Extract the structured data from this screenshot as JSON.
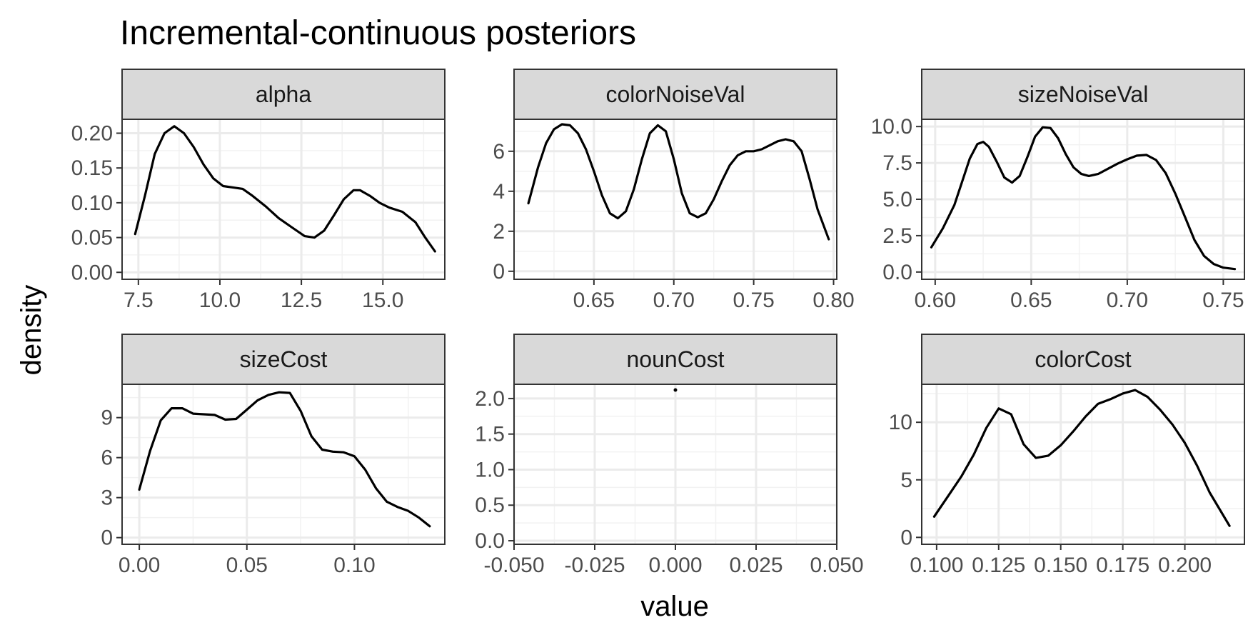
{
  "chart_data": {
    "type": "area",
    "title": "Incremental-continuous posteriors",
    "xlabel": "value",
    "ylabel": "density",
    "grid": true,
    "facets": [
      {
        "name": "alpha",
        "xlim": [
          7.0,
          16.9
        ],
        "ylim": [
          -0.01,
          0.22
        ],
        "xticks": [
          7.5,
          10.0,
          12.5,
          15.0
        ],
        "xtick_labels": [
          "7.5",
          "10.0",
          "12.5",
          "15.0"
        ],
        "yticks": [
          0.0,
          0.05,
          0.1,
          0.15,
          0.2
        ],
        "ytick_labels": [
          "0.00",
          "0.05",
          "0.10",
          "0.15",
          "0.20"
        ],
        "x": [
          7.4,
          7.7,
          8.0,
          8.3,
          8.6,
          8.9,
          9.2,
          9.5,
          9.8,
          10.1,
          10.4,
          10.7,
          11.0,
          11.4,
          11.8,
          12.2,
          12.6,
          12.9,
          13.2,
          13.5,
          13.8,
          14.1,
          14.3,
          14.6,
          14.9,
          15.2,
          15.6,
          16.0,
          16.3,
          16.6
        ],
        "y": [
          0.055,
          0.11,
          0.17,
          0.2,
          0.21,
          0.2,
          0.18,
          0.155,
          0.135,
          0.124,
          0.122,
          0.12,
          0.11,
          0.095,
          0.078,
          0.065,
          0.052,
          0.05,
          0.06,
          0.082,
          0.105,
          0.118,
          0.118,
          0.11,
          0.1,
          0.093,
          0.087,
          0.072,
          0.05,
          0.03
        ]
      },
      {
        "name": "colorNoiseVal",
        "xlim": [
          0.6,
          0.802
        ],
        "ylim": [
          -0.4,
          7.6
        ],
        "xticks": [
          0.65,
          0.7,
          0.75,
          0.8
        ],
        "xtick_labels": [
          "0.65",
          "0.70",
          "0.75",
          "0.80"
        ],
        "yticks": [
          0,
          2,
          4,
          6
        ],
        "ytick_labels": [
          "0",
          "2",
          "4",
          "6"
        ],
        "x": [
          0.609,
          0.615,
          0.62,
          0.625,
          0.63,
          0.635,
          0.64,
          0.645,
          0.65,
          0.655,
          0.66,
          0.665,
          0.67,
          0.675,
          0.68,
          0.685,
          0.69,
          0.695,
          0.7,
          0.705,
          0.71,
          0.715,
          0.72,
          0.725,
          0.73,
          0.735,
          0.74,
          0.745,
          0.75,
          0.755,
          0.76,
          0.765,
          0.77,
          0.775,
          0.78,
          0.785,
          0.79,
          0.797
        ],
        "y": [
          3.4,
          5.2,
          6.4,
          7.1,
          7.35,
          7.3,
          6.9,
          6.1,
          5.0,
          3.8,
          2.9,
          2.65,
          3.0,
          4.1,
          5.6,
          6.9,
          7.3,
          7.0,
          5.6,
          3.9,
          2.9,
          2.7,
          2.9,
          3.6,
          4.5,
          5.3,
          5.8,
          6.0,
          6.0,
          6.1,
          6.3,
          6.5,
          6.6,
          6.5,
          6.0,
          4.6,
          3.1,
          1.6
        ]
      },
      {
        "name": "sizeNoiseVal",
        "xlim": [
          0.593,
          0.761
        ],
        "ylim": [
          -0.5,
          10.5
        ],
        "xticks": [
          0.6,
          0.65,
          0.7,
          0.75
        ],
        "xtick_labels": [
          "0.60",
          "0.65",
          "0.70",
          "0.75"
        ],
        "yticks": [
          0,
          2.5,
          5,
          7.5,
          10
        ],
        "ytick_labels": [
          "0.0",
          "2.5",
          "5.0",
          "7.5",
          "10.0"
        ],
        "x": [
          0.598,
          0.604,
          0.61,
          0.614,
          0.618,
          0.622,
          0.625,
          0.628,
          0.632,
          0.636,
          0.64,
          0.644,
          0.648,
          0.652,
          0.656,
          0.66,
          0.664,
          0.668,
          0.672,
          0.676,
          0.68,
          0.685,
          0.69,
          0.695,
          0.7,
          0.705,
          0.71,
          0.715,
          0.72,
          0.725,
          0.73,
          0.735,
          0.74,
          0.745,
          0.75,
          0.756
        ],
        "y": [
          1.7,
          3.0,
          4.6,
          6.2,
          7.8,
          8.8,
          8.95,
          8.6,
          7.6,
          6.5,
          6.15,
          6.6,
          7.9,
          9.3,
          9.95,
          9.9,
          9.2,
          8.1,
          7.2,
          6.75,
          6.6,
          6.75,
          7.1,
          7.45,
          7.75,
          8.0,
          8.05,
          7.7,
          6.8,
          5.4,
          3.8,
          2.2,
          1.1,
          0.55,
          0.3,
          0.2
        ]
      },
      {
        "name": "sizeCost",
        "xlim": [
          -0.008,
          0.142
        ],
        "ylim": [
          -0.5,
          11.5
        ],
        "xticks": [
          0.0,
          0.05,
          0.1
        ],
        "xtick_labels": [
          "0.00",
          "0.05",
          "0.10"
        ],
        "yticks": [
          0,
          3,
          6,
          9
        ],
        "ytick_labels": [
          "0",
          "3",
          "6",
          "9"
        ],
        "x": [
          0.0,
          0.005,
          0.01,
          0.015,
          0.02,
          0.025,
          0.03,
          0.035,
          0.04,
          0.045,
          0.05,
          0.055,
          0.06,
          0.065,
          0.07,
          0.075,
          0.08,
          0.085,
          0.09,
          0.095,
          0.1,
          0.105,
          0.11,
          0.115,
          0.12,
          0.125,
          0.13,
          0.135
        ],
        "y": [
          3.6,
          6.5,
          8.8,
          9.7,
          9.7,
          9.3,
          9.25,
          9.2,
          8.85,
          8.9,
          9.6,
          10.3,
          10.7,
          10.9,
          10.85,
          9.5,
          7.6,
          6.6,
          6.45,
          6.4,
          6.1,
          5.1,
          3.7,
          2.7,
          2.3,
          2.0,
          1.5,
          0.85
        ]
      },
      {
        "name": "nounCost",
        "type": "scatter",
        "xlim": [
          -0.05,
          0.05
        ],
        "ylim": [
          -0.05,
          2.2
        ],
        "xticks": [
          -0.05,
          -0.025,
          0.0,
          0.025,
          0.05
        ],
        "xtick_labels": [
          "-0.050",
          "-0.025",
          "0.000",
          "0.025",
          "0.050"
        ],
        "yticks": [
          0,
          0.5,
          1.0,
          1.5,
          2.0
        ],
        "ytick_labels": [
          "0.0",
          "0.5",
          "1.0",
          "1.5",
          "2.0"
        ],
        "x": [
          0.0
        ],
        "y": [
          2.12
        ]
      },
      {
        "name": "colorCost",
        "xlim": [
          0.094,
          0.224
        ],
        "ylim": [
          -0.6,
          13.3
        ],
        "xticks": [
          0.1,
          0.125,
          0.15,
          0.175,
          0.2
        ],
        "xtick_labels": [
          "0.100",
          "0.125",
          "0.150",
          "0.175",
          "0.200"
        ],
        "yticks": [
          0,
          5,
          10
        ],
        "ytick_labels": [
          "0",
          "5",
          "10"
        ],
        "x": [
          0.099,
          0.105,
          0.11,
          0.115,
          0.12,
          0.125,
          0.13,
          0.135,
          0.14,
          0.145,
          0.15,
          0.155,
          0.16,
          0.165,
          0.17,
          0.175,
          0.18,
          0.185,
          0.19,
          0.195,
          0.2,
          0.205,
          0.21,
          0.218
        ],
        "y": [
          1.8,
          3.7,
          5.3,
          7.2,
          9.5,
          11.2,
          10.7,
          8.1,
          6.9,
          7.1,
          8.0,
          9.2,
          10.5,
          11.6,
          12.0,
          12.5,
          12.8,
          12.2,
          11.1,
          9.8,
          8.2,
          6.2,
          3.9,
          1.0
        ]
      }
    ]
  }
}
